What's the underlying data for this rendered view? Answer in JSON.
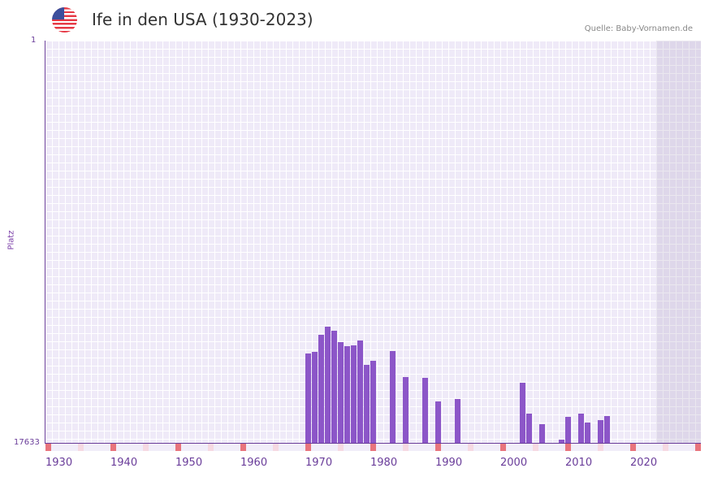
{
  "header": {
    "title": "Ife in den USA (1930-2023)",
    "source": "Quelle: Baby-Vornamen.de",
    "flag_icon": "us-flag-icon"
  },
  "axis": {
    "y_top": "1",
    "y_bottom": "17633",
    "y_title": "Platz"
  },
  "colors": {
    "bar": "#8c56c8",
    "decade_marker": "#e8747c",
    "half_decade_marker": "#f6d9e2",
    "grid": "#efeaf8",
    "axis": "#6a3d9a"
  },
  "chart_data": {
    "type": "bar",
    "title": "Ife in den USA (1930-2023)",
    "xlabel": "",
    "ylabel": "Platz",
    "ylim": [
      17633,
      1
    ],
    "y_inverted": true,
    "x_ticks": [
      "1930",
      "1940",
      "1950",
      "1960",
      "1970",
      "1980",
      "1990",
      "2000",
      "2010",
      "2020"
    ],
    "categories": [
      1970,
      1971,
      1972,
      1973,
      1974,
      1975,
      1976,
      1977,
      1978,
      1979,
      1980,
      1983,
      1985,
      1988,
      1990,
      1993,
      2003,
      2004,
      2006,
      2009,
      2010,
      2012,
      2013,
      2015,
      2016
    ],
    "values": [
      13700,
      13650,
      12900,
      12550,
      12700,
      13200,
      13400,
      13350,
      13150,
      14200,
      14050,
      13600,
      14750,
      14800,
      15800,
      15700,
      15000,
      16350,
      16800,
      17500,
      16500,
      16350,
      16750,
      16650,
      16450
    ]
  }
}
